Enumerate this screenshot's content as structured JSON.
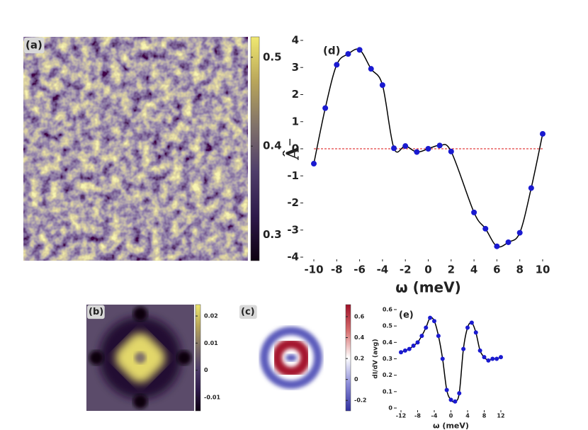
{
  "chart_data": [
    {
      "type": "image",
      "panel_label": "(a)",
      "clim": [
        0.271,
        0.523
      ],
      "cticks": [
        0.3,
        0.4,
        0.5
      ],
      "colormap": [
        "#0d0010",
        "#2e1a4a",
        "#4f3e6a",
        "#80716a",
        "#b8a55a",
        "#f0e870"
      ]
    },
    {
      "type": "line",
      "panel_label": "(d)",
      "xlabel": "ω (meV)",
      "ylabel": "Â⁻",
      "x": [
        -10,
        -9,
        -8,
        -7,
        -6,
        -5,
        -4,
        -3,
        -2,
        -1,
        0,
        1,
        2,
        4,
        5,
        6,
        7,
        8,
        9,
        10
      ],
      "values": [
        -0.55,
        1.5,
        3.1,
        3.5,
        3.65,
        2.95,
        2.35,
        0.02,
        0.1,
        -0.12,
        0.0,
        0.12,
        -0.1,
        -2.35,
        -2.95,
        -3.6,
        -3.45,
        -3.1,
        -1.45,
        0.55
      ],
      "color": "#000000",
      "marker_color": "#1a1ad0",
      "reference_line": {
        "y": 0,
        "color": "#dd1111"
      },
      "xlim": [
        -10,
        10
      ],
      "xticks": [
        -10,
        -8,
        -6,
        -4,
        -2,
        0,
        2,
        4,
        6,
        8,
        10
      ],
      "ylim": [
        -4,
        4
      ],
      "yticks": [
        -4,
        -3,
        -2,
        -1,
        0,
        1,
        2,
        3,
        4
      ]
    },
    {
      "type": "image",
      "panel_label": "(b)",
      "clim": [
        -0.015,
        0.0242
      ],
      "cticks": [
        -0.01,
        0,
        0.01,
        0.02
      ],
      "colormap": [
        "#0d0010",
        "#2e1a4a",
        "#4f3e6a",
        "#80716a",
        "#b8a55a",
        "#f0e870"
      ]
    },
    {
      "type": "image",
      "panel_label": "(c)",
      "clim": [
        -0.3,
        0.715
      ],
      "cticks": [
        -0.2,
        0,
        0.2,
        0.4,
        0.6
      ],
      "colormap": [
        "#3030a0",
        "#8a8ad8",
        "#ffffff",
        "#d87070",
        "#a01028"
      ]
    },
    {
      "type": "line",
      "panel_label": "(e)",
      "xlabel": "ω (meV)",
      "ylabel": "dI/dV (avg)",
      "x": [
        -12,
        -11,
        -10,
        -9,
        -8,
        -7,
        -6,
        -5,
        -4,
        -3,
        -2,
        -1,
        0,
        1,
        2,
        3,
        4,
        5,
        6,
        7,
        8,
        9,
        10,
        11,
        12
      ],
      "values": [
        0.34,
        0.35,
        0.36,
        0.38,
        0.4,
        0.44,
        0.49,
        0.55,
        0.53,
        0.44,
        0.3,
        0.11,
        0.05,
        0.04,
        0.09,
        0.36,
        0.49,
        0.52,
        0.46,
        0.35,
        0.31,
        0.29,
        0.3,
        0.3,
        0.31
      ],
      "color": "#000000",
      "marker_color": "#1a1ad0",
      "xlim": [
        -12,
        12
      ],
      "xticks": [
        -12,
        -8,
        -4,
        0,
        4,
        8,
        12
      ],
      "ylim": [
        0,
        0.6
      ],
      "yticks": [
        0,
        0.1,
        0.2,
        0.3,
        0.4,
        0.5,
        0.6
      ]
    }
  ]
}
